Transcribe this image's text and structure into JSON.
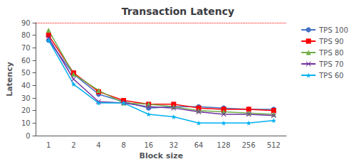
{
  "chart_data": {
    "type": "line",
    "title": "Transaction Latency",
    "x_label": "Block size",
    "y_label": "Latency",
    "categories": [
      "1",
      "2",
      "4",
      "8",
      "16",
      "32",
      "64",
      "128",
      "256",
      "512"
    ],
    "series": [
      {
        "name": "TPS 100",
        "color": "#4472C4",
        "marker": "circle",
        "values": [
          76,
          49,
          33,
          27,
          22,
          23,
          23,
          22,
          21,
          21
        ]
      },
      {
        "name": "TPS 90",
        "color": "#FF0000",
        "marker": "square",
        "values": [
          80,
          50,
          35,
          28,
          25,
          25,
          22,
          21,
          21,
          20
        ]
      },
      {
        "name": "TPS 80",
        "color": "#70AD47",
        "marker": "triangle",
        "values": [
          84,
          49,
          36,
          26,
          25,
          23,
          20,
          19,
          18,
          17
        ]
      },
      {
        "name": "TPS 70",
        "color": "#7030A0",
        "marker": "x",
        "values": [
          78,
          45,
          27,
          26,
          23,
          22,
          19,
          17,
          17,
          16
        ]
      },
      {
        "name": "TPS 60",
        "color": "#00B0F0",
        "marker": "star",
        "values": [
          76,
          41,
          26,
          26,
          17,
          15,
          10,
          10,
          10,
          12
        ]
      }
    ],
    "hline": {
      "value": 90,
      "color": "#FF0000",
      "line_style": "dotted"
    },
    "ylim": [
      0,
      90
    ],
    "yticks": [
      0,
      10,
      20,
      30,
      40,
      50,
      60,
      70,
      80,
      90
    ],
    "grid": false,
    "legend": "right"
  }
}
